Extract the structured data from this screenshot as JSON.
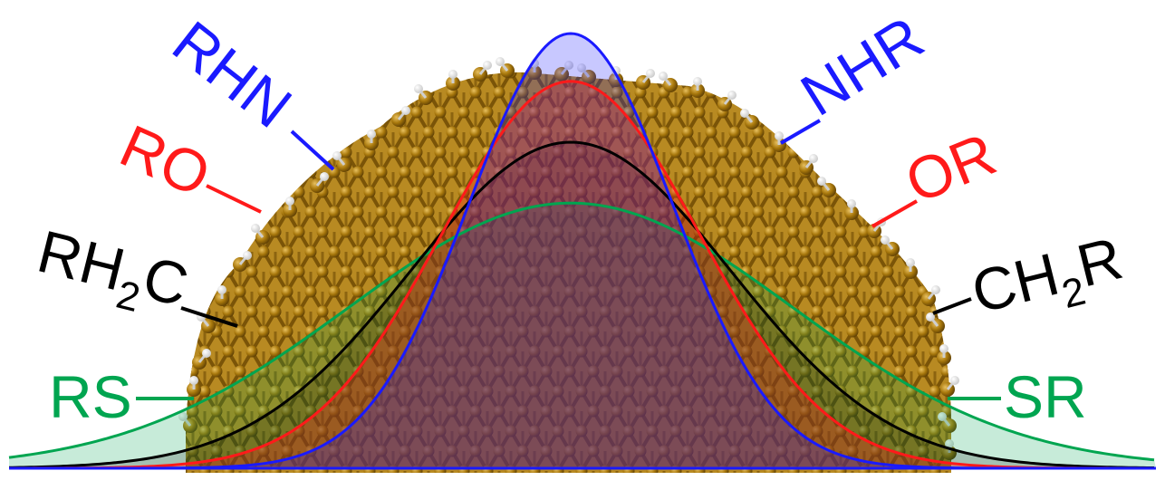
{
  "labels": {
    "rhn": "RHN",
    "nhr": "NHR",
    "ro": "RO",
    "or": "OR",
    "rh2c_pre": "RH",
    "rh2c_sub": "2",
    "rh2c_post": "C",
    "ch2r_pre": "CH",
    "ch2r_sub": "2",
    "ch2r_post": "R",
    "rs": "RS",
    "sr": "SR"
  },
  "colors": {
    "amine": "#1a1aff",
    "ether": "#ff1a1a",
    "alkyl": "#000000",
    "thiol": "#00a550",
    "atom": "#a8780c",
    "hydrogen": "#f2f2f2"
  },
  "curves": [
    {
      "group": "thiol",
      "relative_height": 0.61,
      "relative_width": 1.0
    },
    {
      "group": "alkyl",
      "relative_height": 0.75,
      "relative_width": 0.72
    },
    {
      "group": "ether",
      "relative_height": 0.89,
      "relative_width": 0.58
    },
    {
      "group": "amine",
      "relative_height": 1.0,
      "relative_width": 0.46
    }
  ]
}
